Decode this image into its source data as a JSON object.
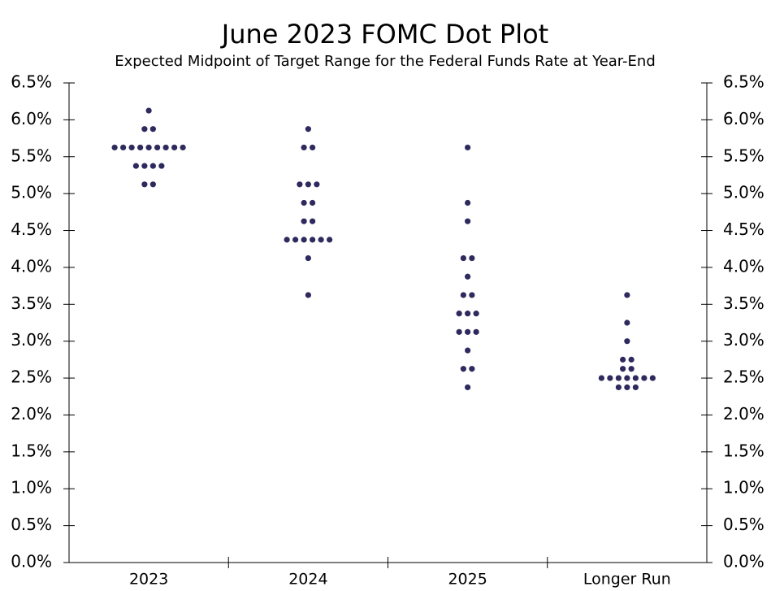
{
  "chart_data": {
    "type": "dot",
    "title": "June 2023 FOMC Dot Plot",
    "subtitle": "Expected Midpoint of Target Range for the Federal Funds Rate at Year-End",
    "categories": [
      "2023",
      "2024",
      "2025",
      "Longer Run"
    ],
    "values": [
      [
        6.125,
        5.875,
        5.875,
        5.625,
        5.625,
        5.625,
        5.625,
        5.625,
        5.625,
        5.625,
        5.625,
        5.625,
        5.375,
        5.375,
        5.375,
        5.375,
        5.125,
        5.125
      ],
      [
        5.875,
        5.625,
        5.625,
        5.125,
        5.125,
        5.125,
        4.875,
        4.875,
        4.625,
        4.625,
        4.375,
        4.375,
        4.375,
        4.375,
        4.375,
        4.375,
        4.125,
        3.625
      ],
      [
        5.625,
        4.875,
        4.625,
        4.125,
        4.125,
        3.875,
        3.625,
        3.625,
        3.375,
        3.375,
        3.375,
        3.125,
        3.125,
        3.125,
        2.875,
        2.625,
        2.625,
        2.375
      ],
      [
        3.625,
        3.25,
        3.0,
        2.75,
        2.75,
        2.625,
        2.625,
        2.5,
        2.5,
        2.5,
        2.5,
        2.5,
        2.5,
        2.5,
        2.375,
        2.375,
        2.375
      ]
    ],
    "color": "#2e2a5e",
    "ylim": [
      0,
      6.5
    ],
    "yticks": [
      {
        "value": 0,
        "label": "0.0%"
      },
      {
        "value": 0.5,
        "label": "0.5%"
      },
      {
        "value": 1,
        "label": "1.0%"
      },
      {
        "value": 1.5,
        "label": "1.5%"
      },
      {
        "value": 2,
        "label": "2.0%"
      },
      {
        "value": 2.5,
        "label": "2.5%"
      },
      {
        "value": 3,
        "label": "3.0%"
      },
      {
        "value": 3.5,
        "label": "3.5%"
      },
      {
        "value": 4,
        "label": "4.0%"
      },
      {
        "value": 4.5,
        "label": "4.5%"
      },
      {
        "value": 5,
        "label": "5.0%"
      },
      {
        "value": 5.5,
        "label": "5.5%"
      },
      {
        "value": 6,
        "label": "6.0%"
      },
      {
        "value": 6.5,
        "label": "6.5%"
      }
    ],
    "grid": false
  }
}
